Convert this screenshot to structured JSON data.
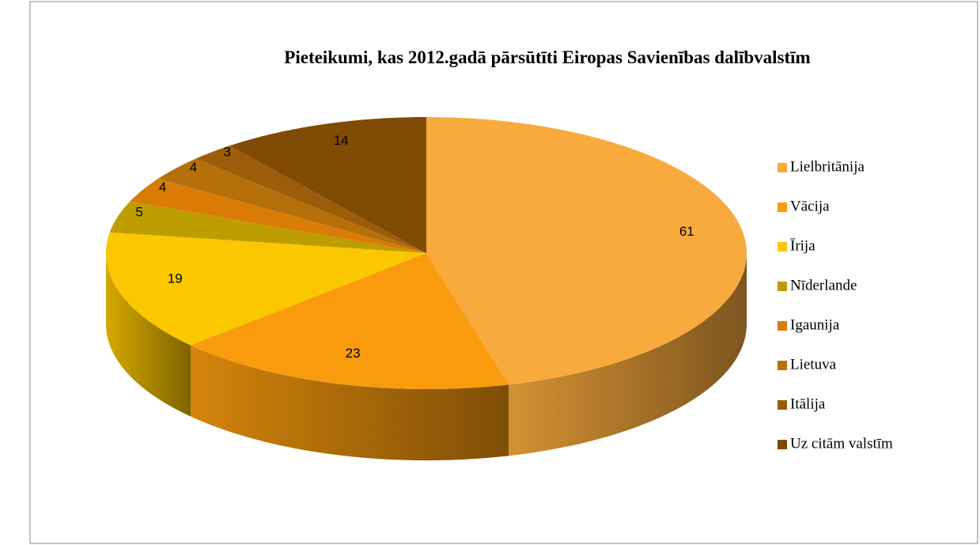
{
  "chart_data": {
    "type": "pie3d",
    "title": "Pieteikumi, kas 2012.gadā pārsūtīti  Eiropas Savienības dalībvalstīm",
    "categories": [
      "Lielbritānija",
      "Vācija",
      "Īrija",
      "Nīderlande",
      "Igaunija",
      "Lietuva",
      "Itālija",
      "Uz citām valstīm"
    ],
    "values": [
      61,
      23,
      19,
      5,
      4,
      4,
      3,
      14
    ],
    "colors": [
      "#F9AA3C",
      "#F99B0C",
      "#FAC700",
      "#BE9D00",
      "#D97B05",
      "#B5700A",
      "#9C5C0A",
      "#7F4B05"
    ],
    "legend": "right"
  }
}
